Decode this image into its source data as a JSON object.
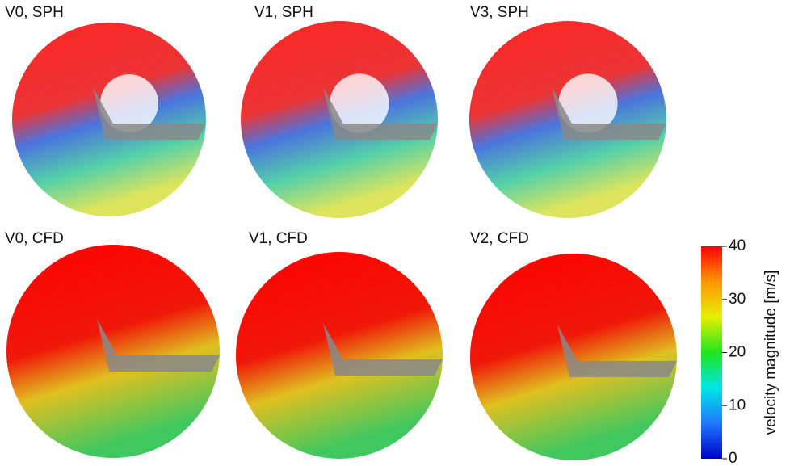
{
  "panels": [
    {
      "label": "V0, SPH"
    },
    {
      "label": "V1, SPH"
    },
    {
      "label": "V3, SPH"
    },
    {
      "label": "V0, CFD"
    },
    {
      "label": "V1, CFD"
    },
    {
      "label": "V2, CFD"
    }
  ],
  "colorbar": {
    "label": "velocity magnitude [m/s]",
    "lim": [
      0,
      40
    ],
    "ticks": [
      0,
      10,
      20,
      30,
      40
    ],
    "colors": [
      "#0000c8",
      "#1e78ff",
      "#00e6e6",
      "#1ee61e",
      "#e6f000",
      "#ff9600",
      "#ff0000"
    ]
  }
}
